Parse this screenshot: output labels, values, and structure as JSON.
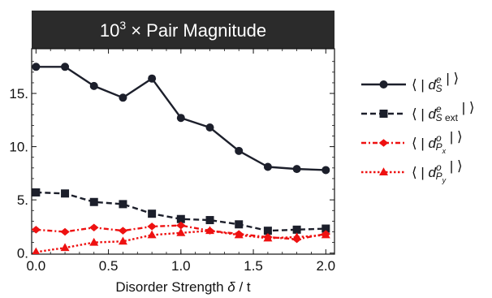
{
  "chart_data": {
    "type": "line",
    "title": "10³ × Pair Magnitude",
    "xlabel": "Disorder Strength δ / t",
    "ylabel": "",
    "xlim": [
      -0.03,
      2.06
    ],
    "ylim": [
      -0.1,
      19.2
    ],
    "xticks": [
      0.0,
      0.5,
      1.0,
      1.5,
      2.0
    ],
    "xtick_labels": [
      "0.0",
      "0.5",
      "1.0",
      "1.5",
      "2.0"
    ],
    "yticks": [
      0,
      5,
      10,
      15
    ],
    "ytick_labels": [
      "0.",
      "5.",
      "10.",
      "15."
    ],
    "legend_position": "right",
    "x": [
      0.0,
      0.2,
      0.4,
      0.6,
      0.8,
      1.0,
      1.2,
      1.4,
      1.6,
      1.8,
      2.0
    ],
    "series": [
      {
        "legend_label": "⟨ | d_S^e | ⟩",
        "color": "#1c1f2b",
        "line": "solid",
        "marker": "circle",
        "values": [
          17.5,
          17.5,
          15.7,
          14.6,
          16.4,
          12.7,
          11.8,
          9.6,
          8.1,
          7.9,
          7.8
        ]
      },
      {
        "legend_label": "⟨ | d_S ext^e | ⟩",
        "color": "#1c1f2b",
        "line": "dashed",
        "marker": "square",
        "values": [
          5.7,
          5.6,
          4.8,
          4.6,
          3.7,
          3.2,
          3.1,
          2.7,
          2.1,
          2.2,
          2.3
        ]
      },
      {
        "legend_label": "⟨ | d_Px^o | ⟩",
        "color": "#ee1111",
        "line": "dashdot",
        "marker": "diamond",
        "values": [
          2.2,
          2.0,
          2.4,
          2.1,
          2.5,
          2.6,
          2.1,
          1.8,
          1.5,
          1.3,
          1.8
        ]
      },
      {
        "legend_label": "⟨ | d_Py^o | ⟩",
        "color": "#ee1111",
        "line": "dotted",
        "marker": "triangle",
        "values": [
          0.1,
          0.5,
          1.0,
          1.1,
          1.7,
          1.9,
          2.1,
          1.7,
          1.4,
          1.5,
          1.7
        ]
      }
    ],
    "legend": [
      {
        "open": "⟨ | ",
        "base": "d",
        "sup": "e",
        "sub": "S",
        "sub_extra": "",
        "subsub": "",
        "close": " | ⟩"
      },
      {
        "open": "⟨ | ",
        "base": "d",
        "sup": "e",
        "sub": "S",
        "sub_extra": " ext",
        "subsub": "",
        "close": " | ⟩"
      },
      {
        "open": "⟨ | ",
        "base": "d",
        "sup": "o",
        "sub": "P",
        "sub_extra": "",
        "subsub": "x",
        "close": " | ⟩"
      },
      {
        "open": "⟨ | ",
        "base": "d",
        "sup": "o",
        "sub": "P",
        "sub_extra": "",
        "subsub": "y",
        "close": " | ⟩"
      }
    ],
    "title_parts": {
      "base": "10",
      "sup": "3",
      "rest": " × Pair Magnitude"
    },
    "xlabel_parts": {
      "pre": "Disorder Strength ",
      "sym": "δ",
      "post": " / t"
    },
    "title_bar_color": "#2b2b2b"
  }
}
